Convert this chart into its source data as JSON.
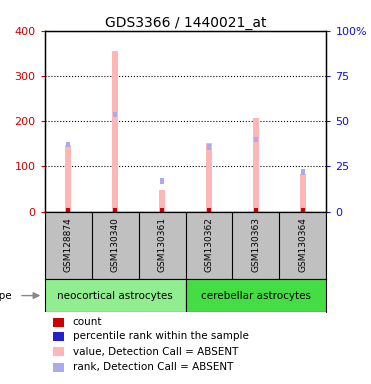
{
  "title": "GDS3366 / 1440021_at",
  "samples": [
    "GSM128874",
    "GSM130340",
    "GSM130361",
    "GSM130362",
    "GSM130363",
    "GSM130364"
  ],
  "cell_types": [
    {
      "label": "neocortical astrocytes",
      "color": "#90EE90"
    },
    {
      "label": "cerebellar astrocytes",
      "color": "#44DD44"
    }
  ],
  "value_ABSENT": [
    148,
    355,
    48,
    152,
    207,
    83
  ],
  "rank_ABSENT": [
    148,
    215,
    68,
    143,
    160,
    88
  ],
  "count_vals": [
    2,
    2,
    2,
    2,
    2,
    2
  ],
  "ylim_left": [
    0,
    400
  ],
  "ylim_right": [
    0,
    100
  ],
  "yticks_left": [
    0,
    100,
    200,
    300,
    400
  ],
  "yticks_right": [
    0,
    25,
    50,
    75,
    100
  ],
  "yticklabels_left": [
    "0",
    "100",
    "200",
    "300",
    "400"
  ],
  "yticklabels_right": [
    "0",
    "25",
    "50",
    "75",
    "100%"
  ],
  "colors": {
    "value_ABSENT": "#FFB6B6",
    "rank_ABSENT": "#AAAAEE",
    "count": "#CC0000",
    "rank_dot": "#2222CC",
    "sample_bg": "#C0C0C0",
    "left_axis": "#CC0000",
    "right_axis": "#1111CC",
    "grid": "black"
  },
  "legend_items": [
    {
      "label": "count",
      "color": "#CC0000"
    },
    {
      "label": "percentile rank within the sample",
      "color": "#2222CC"
    },
    {
      "label": "value, Detection Call = ABSENT",
      "color": "#FFB6B6"
    },
    {
      "label": "rank, Detection Call = ABSENT",
      "color": "#AAAAEE"
    }
  ]
}
